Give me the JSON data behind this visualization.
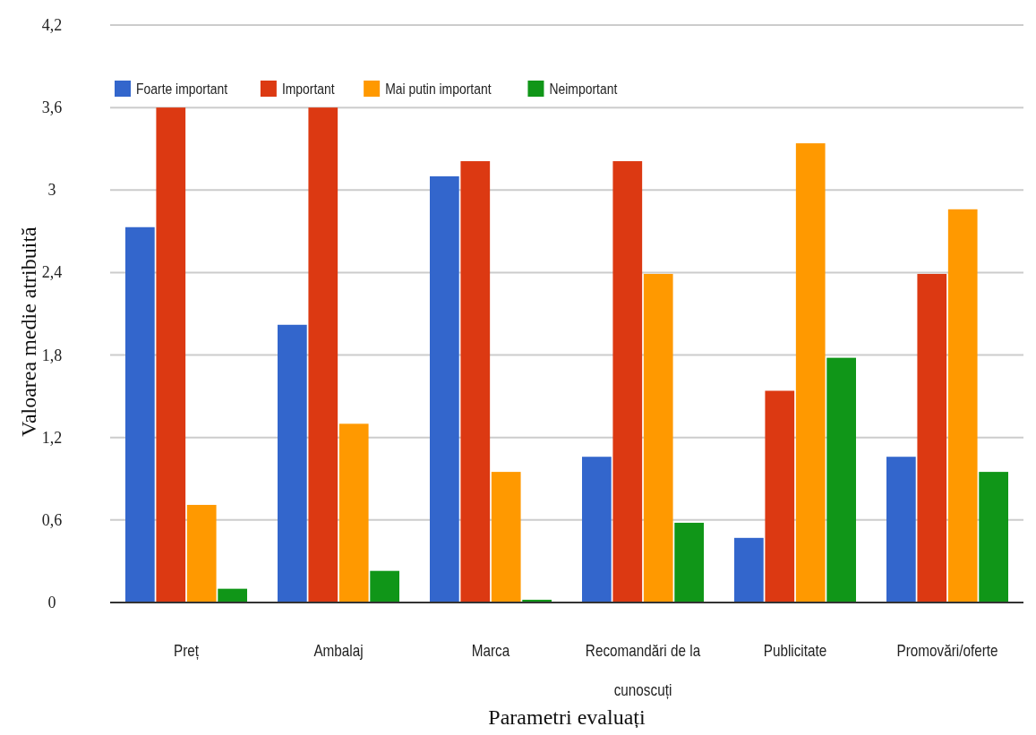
{
  "chart_data": {
    "type": "bar",
    "xlabel": "Parametri evaluați",
    "ylabel": "Valoarea medie atribuită",
    "categories": [
      "Preț",
      "Ambalaj",
      "Marca",
      "Recomandări de la cunoscuți",
      "Publicitate",
      "Promovări/oferte"
    ],
    "series": [
      {
        "name": "Foarte important",
        "color": "#3366cc",
        "values": [
          2.73,
          2.02,
          3.1,
          1.06,
          0.47,
          1.06
        ]
      },
      {
        "name": "Important",
        "color": "#dc3912",
        "values": [
          3.6,
          3.6,
          3.21,
          3.21,
          1.54,
          2.39
        ]
      },
      {
        "name": "Mai putin important",
        "color": "#ff9900",
        "values": [
          0.71,
          1.3,
          0.95,
          2.39,
          3.34,
          2.86
        ]
      },
      {
        "name": "Neimportant",
        "color": "#109618",
        "values": [
          0.1,
          0.23,
          0.02,
          0.58,
          1.78,
          0.95
        ]
      }
    ],
    "ylim": [
      0,
      4.2
    ],
    "yticks": [
      0,
      {
        "value": 0.6,
        "label": "0,6"
      },
      {
        "value": 1.2,
        "label": "1,2"
      },
      {
        "value": 1.8,
        "label": "1,8"
      },
      {
        "value": 2.4,
        "label": "2,4"
      },
      3,
      {
        "value": 3.6,
        "label": "3,6"
      },
      {
        "value": 4.2,
        "label": "4,2"
      }
    ],
    "grid": true,
    "legend": "top left"
  }
}
